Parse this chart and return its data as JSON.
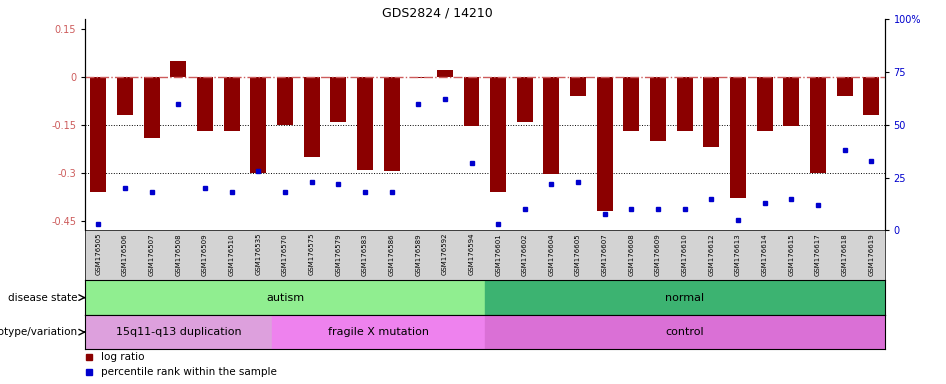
{
  "title": "GDS2824 / 14210",
  "samples": [
    "GSM176505",
    "GSM176506",
    "GSM176507",
    "GSM176508",
    "GSM176509",
    "GSM176510",
    "GSM176535",
    "GSM176570",
    "GSM176575",
    "GSM176579",
    "GSM176583",
    "GSM176586",
    "GSM176589",
    "GSM176592",
    "GSM176594",
    "GSM176601",
    "GSM176602",
    "GSM176604",
    "GSM176605",
    "GSM176607",
    "GSM176608",
    "GSM176609",
    "GSM176610",
    "GSM176612",
    "GSM176613",
    "GSM176614",
    "GSM176615",
    "GSM176617",
    "GSM176618",
    "GSM176619"
  ],
  "log_ratio": [
    -0.36,
    -0.12,
    -0.19,
    0.05,
    -0.17,
    -0.17,
    -0.3,
    -0.15,
    -0.25,
    -0.14,
    -0.29,
    -0.295,
    -0.005,
    0.02,
    -0.155,
    -0.36,
    -0.14,
    -0.305,
    -0.06,
    -0.42,
    -0.17,
    -0.2,
    -0.17,
    -0.22,
    -0.38,
    -0.17,
    -0.155,
    -0.3,
    -0.06,
    -0.12
  ],
  "percentile": [
    3,
    20,
    18,
    60,
    20,
    18,
    28,
    18,
    23,
    22,
    18,
    18,
    60,
    62,
    32,
    3,
    10,
    22,
    23,
    8,
    10,
    10,
    10,
    15,
    5,
    13,
    15,
    12,
    38,
    33
  ],
  "bar_color": "#8B0000",
  "dot_color": "#0000CD",
  "hline_zero_color": "#CD5C5C",
  "ylim_left": [
    -0.48,
    0.18
  ],
  "ylim_right": [
    0,
    100
  ],
  "yticks_left": [
    0.15,
    0.0,
    -0.15,
    -0.3,
    -0.45
  ],
  "yticks_left_labels": [
    "0.15",
    "0",
    "-0.15",
    "-0.3",
    "-0.45"
  ],
  "yticks_right": [
    100,
    75,
    50,
    25,
    0
  ],
  "yticks_right_labels": [
    "100%",
    "75",
    "50",
    "25",
    "0"
  ],
  "disease_state_groups": [
    {
      "label": "autism",
      "start": 0,
      "end": 14,
      "color": "#90EE90"
    },
    {
      "label": "normal",
      "start": 15,
      "end": 29,
      "color": "#3CB371"
    }
  ],
  "genotype_groups": [
    {
      "label": "15q11-q13 duplication",
      "start": 0,
      "end": 6,
      "color": "#DDA0DD"
    },
    {
      "label": "fragile X mutation",
      "start": 7,
      "end": 14,
      "color": "#EE82EE"
    },
    {
      "label": "control",
      "start": 15,
      "end": 29,
      "color": "#DA70D6"
    }
  ],
  "legend_items": [
    "log ratio",
    "percentile rank within the sample"
  ],
  "disease_state_label": "disease state",
  "genotype_label": "genotype/variation",
  "bar_width": 0.6,
  "tick_label_bg": "#D3D3D3"
}
